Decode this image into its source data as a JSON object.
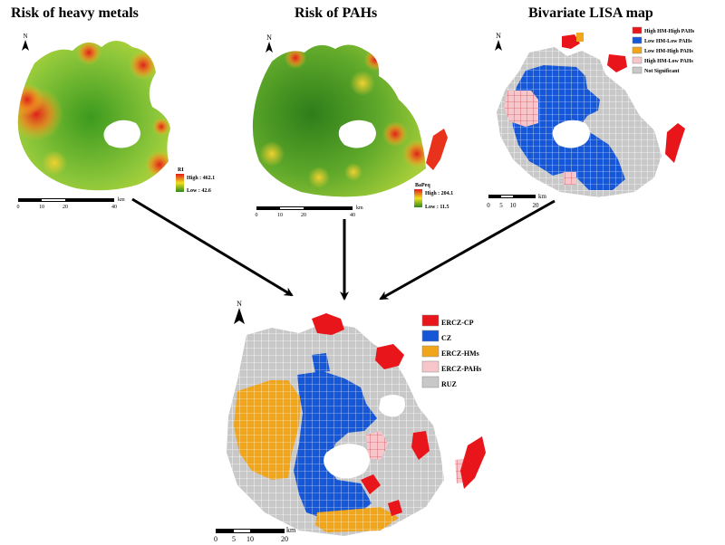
{
  "panels": {
    "heavy_metals": {
      "title": "Risk of heavy metals",
      "legend_title": "RI",
      "legend_high": "High : 462.1",
      "legend_low": "Low : 42.6",
      "scale_ticks": [
        "0",
        "10",
        "20",
        "40"
      ],
      "scale_unit": "km"
    },
    "pahs": {
      "title": "Risk of PAHs",
      "legend_title": "BaPeq",
      "legend_high": "High : 204.1",
      "legend_low": "Low : 11.5",
      "scale_ticks": [
        "0",
        "10",
        "20",
        "40"
      ],
      "scale_unit": "km"
    },
    "lisa": {
      "title": "Bivariate LISA map",
      "legend": [
        {
          "label": "High HM-High PAHs",
          "color": "#e8151b"
        },
        {
          "label": "Low HM-Low PAHs",
          "color": "#1557d6"
        },
        {
          "label": "Low HM-High PAHs",
          "color": "#f0a51b"
        },
        {
          "label": "High HM-Low PAHs",
          "color": "#f7c6cb"
        },
        {
          "label": "Not Significant",
          "color": "#c8c8c8"
        }
      ],
      "scale_ticks": [
        "0",
        "5",
        "10",
        "20"
      ],
      "scale_unit": "km"
    },
    "zones": {
      "legend": [
        {
          "label": "ERCZ-CP",
          "color": "#e8151b"
        },
        {
          "label": "CZ",
          "color": "#1557d6"
        },
        {
          "label": "ERCZ-HMs",
          "color": "#f0a51b"
        },
        {
          "label": "ERCZ-PAHs",
          "color": "#f7c6cb"
        },
        {
          "label": "RUZ",
          "color": "#c8c8c8"
        }
      ],
      "scale_ticks": [
        "0",
        "5",
        "10",
        "20"
      ],
      "scale_unit": "km"
    }
  },
  "north_label": "N"
}
